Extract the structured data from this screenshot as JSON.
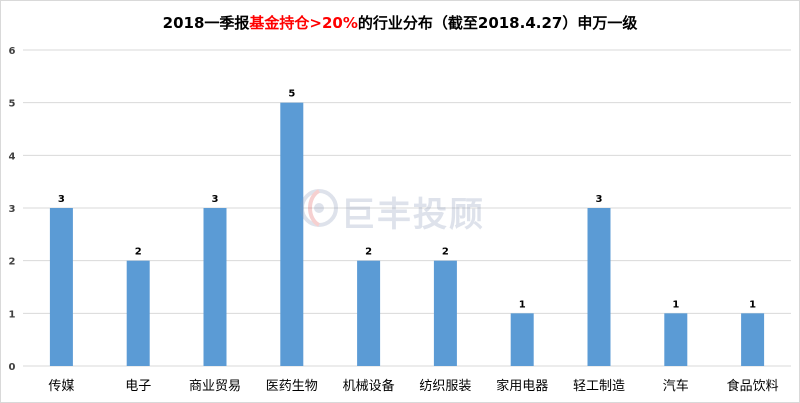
{
  "chart_data": {
    "type": "bar",
    "title_prefix": "2018一季报",
    "title_highlight": "基金持仓>20%",
    "title_suffix": "的行业分布（截至2018.4.27）申万一级",
    "categories": [
      "传媒",
      "电子",
      "商业贸易",
      "医药生物",
      "机械设备",
      "纺织服装",
      "家用电器",
      "轻工制造",
      "汽车",
      "食品饮料"
    ],
    "values": [
      3,
      2,
      3,
      5,
      2,
      2,
      1,
      3,
      1,
      1
    ],
    "ylim": [
      0,
      6
    ],
    "yticks": [
      0,
      1,
      2,
      3,
      4,
      5,
      6
    ],
    "grid": true,
    "legend": "none",
    "bar_color": "#5b9bd5",
    "grid_color": "#d9d9d9",
    "highlight_color": "#ff0000"
  },
  "watermark": {
    "text": "巨丰投顾",
    "logo": "jufeng-swirl-icon"
  }
}
